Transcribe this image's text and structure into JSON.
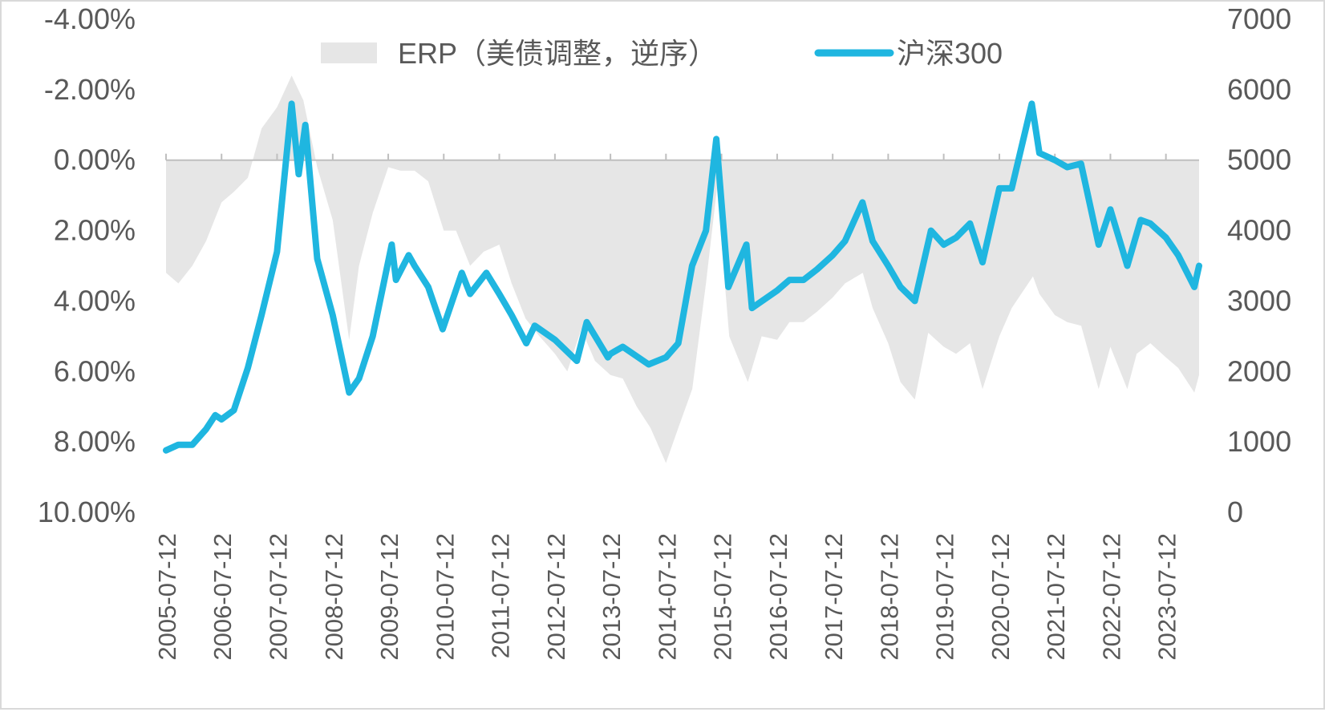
{
  "chart_data": {
    "type": "area",
    "x_ticks": [
      "2005-07-12",
      "2006-07-12",
      "2007-07-12",
      "2008-07-12",
      "2009-07-12",
      "2010-07-12",
      "2011-07-12",
      "2012-07-12",
      "2013-07-12",
      "2014-07-12",
      "2015-07-12",
      "2016-07-12",
      "2017-07-12",
      "2018-07-12",
      "2019-07-12",
      "2020-07-12",
      "2021-07-12",
      "2022-07-12",
      "2023-07-12"
    ],
    "x_range": [
      "2005-07-12",
      "2024-02-15"
    ],
    "y_left": {
      "ticks": [
        "-4.00%",
        "-2.00%",
        "0.00%",
        "2.00%",
        "4.00%",
        "6.00%",
        "8.00%",
        "10.00%"
      ],
      "range": [
        -4,
        10
      ],
      "reversed": true,
      "unit": "%"
    },
    "y_right": {
      "ticks": [
        "7000",
        "6000",
        "5000",
        "4000",
        "3000",
        "2000",
        "1000",
        "0"
      ],
      "range": [
        0,
        7000
      ]
    },
    "legend_position": "top",
    "grid": false,
    "series": [
      {
        "name": "ERP（美债调整，逆序）",
        "type": "area",
        "axis": "left",
        "color": "#e6e6e6",
        "x": [
          "2005-07-12",
          "2005-10-01",
          "2006-01-01",
          "2006-04-01",
          "2006-07-12",
          "2006-10-01",
          "2007-01-01",
          "2007-04-01",
          "2007-07-12",
          "2007-10-16",
          "2008-01-01",
          "2008-04-01",
          "2008-07-12",
          "2008-10-28",
          "2009-01-01",
          "2009-04-01",
          "2009-07-12",
          "2009-10-01",
          "2010-01-01",
          "2010-04-01",
          "2010-07-12",
          "2010-10-01",
          "2011-01-01",
          "2011-04-01",
          "2011-07-12",
          "2011-10-01",
          "2012-01-01",
          "2012-04-01",
          "2012-07-12",
          "2012-10-01",
          "2013-01-01",
          "2013-04-01",
          "2013-07-12",
          "2013-10-01",
          "2014-01-01",
          "2014-04-01",
          "2014-07-12",
          "2014-10-01",
          "2015-01-01",
          "2015-04-01",
          "2015-06-12",
          "2015-09-01",
          "2016-01-01",
          "2016-04-01",
          "2016-07-12",
          "2016-10-01",
          "2017-01-01",
          "2017-04-01",
          "2017-07-12",
          "2017-10-01",
          "2018-01-26",
          "2018-04-01",
          "2018-07-12",
          "2018-10-01",
          "2019-01-03",
          "2019-04-01",
          "2019-07-12",
          "2019-10-01",
          "2020-01-01",
          "2020-03-23",
          "2020-07-12",
          "2020-10-01",
          "2021-02-18",
          "2021-04-01",
          "2021-07-12",
          "2021-10-01",
          "2022-01-01",
          "2022-04-26",
          "2022-07-12",
          "2022-10-31",
          "2023-01-01",
          "2023-04-01",
          "2023-07-12",
          "2023-10-01",
          "2024-01-15",
          "2024-02-15"
        ],
        "values": [
          3.2,
          3.5,
          3.0,
          2.3,
          1.2,
          0.9,
          0.5,
          -0.9,
          -1.5,
          -2.4,
          -1.7,
          0.2,
          1.7,
          5.1,
          3.0,
          1.5,
          0.2,
          0.3,
          0.3,
          0.6,
          2.0,
          2.0,
          3.0,
          2.6,
          2.4,
          3.5,
          4.5,
          5.0,
          5.5,
          6.0,
          4.8,
          5.7,
          6.1,
          6.2,
          7.0,
          7.6,
          8.6,
          7.6,
          6.5,
          3.5,
          0.8,
          5.0,
          6.3,
          5.0,
          5.1,
          4.6,
          4.6,
          4.3,
          3.9,
          3.5,
          3.2,
          4.2,
          5.2,
          6.3,
          6.8,
          4.9,
          5.3,
          5.5,
          5.2,
          6.5,
          5.0,
          4.2,
          3.3,
          3.8,
          4.4,
          4.6,
          4.7,
          6.5,
          5.3,
          6.5,
          5.5,
          5.2,
          5.6,
          5.9,
          6.6,
          6.1
        ]
      },
      {
        "name": "沪深300",
        "type": "line",
        "axis": "right",
        "color": "#1fb6e0",
        "x": [
          "2005-07-12",
          "2005-10-01",
          "2006-01-01",
          "2006-04-01",
          "2006-06-01",
          "2006-07-12",
          "2006-10-01",
          "2007-01-01",
          "2007-04-01",
          "2007-07-12",
          "2007-10-16",
          "2007-12-01",
          "2008-01-14",
          "2008-04-01",
          "2008-07-12",
          "2008-10-28",
          "2009-01-01",
          "2009-04-01",
          "2009-08-04",
          "2009-09-01",
          "2009-11-23",
          "2010-01-01",
          "2010-04-01",
          "2010-07-05",
          "2010-11-08",
          "2011-01-01",
          "2011-04-18",
          "2011-07-12",
          "2011-10-01",
          "2012-01-06",
          "2012-03-01",
          "2012-07-12",
          "2012-12-03",
          "2013-02-06",
          "2013-06-25",
          "2013-07-12",
          "2013-10-01",
          "2014-03-20",
          "2014-07-12",
          "2014-10-01",
          "2014-12-31",
          "2015-04-01",
          "2015-06-08",
          "2015-08-26",
          "2015-12-23",
          "2016-01-28",
          "2016-07-12",
          "2016-10-01",
          "2017-01-01",
          "2017-04-01",
          "2017-07-12",
          "2017-10-01",
          "2018-01-24",
          "2018-04-01",
          "2018-07-12",
          "2018-10-01",
          "2019-01-03",
          "2019-04-19",
          "2019-07-12",
          "2019-10-01",
          "2020-01-01",
          "2020-03-23",
          "2020-07-12",
          "2020-10-01",
          "2021-02-10",
          "2021-04-01",
          "2021-07-12",
          "2021-10-01",
          "2021-12-31",
          "2022-04-26",
          "2022-07-12",
          "2022-10-31",
          "2023-01-27",
          "2023-04-01",
          "2023-07-12",
          "2023-10-01",
          "2024-01-15",
          "2024-02-15"
        ],
        "values": [
          880,
          960,
          960,
          1180,
          1380,
          1320,
          1450,
          2050,
          2800,
          3700,
          5800,
          4800,
          5500,
          3600,
          2800,
          1700,
          1900,
          2500,
          3800,
          3300,
          3650,
          3500,
          3200,
          2600,
          3400,
          3100,
          3400,
          3100,
          2800,
          2400,
          2650,
          2450,
          2150,
          2700,
          2200,
          2250,
          2350,
          2100,
          2200,
          2400,
          3500,
          4000,
          5300,
          3200,
          3800,
          2900,
          3150,
          3300,
          3300,
          3450,
          3650,
          3850,
          4400,
          3850,
          3500,
          3200,
          3000,
          4000,
          3800,
          3900,
          4100,
          3550,
          4600,
          4600,
          5800,
          5100,
          5000,
          4900,
          4950,
          3800,
          4300,
          3500,
          4150,
          4100,
          3900,
          3650,
          3200,
          3500
        ]
      }
    ]
  }
}
